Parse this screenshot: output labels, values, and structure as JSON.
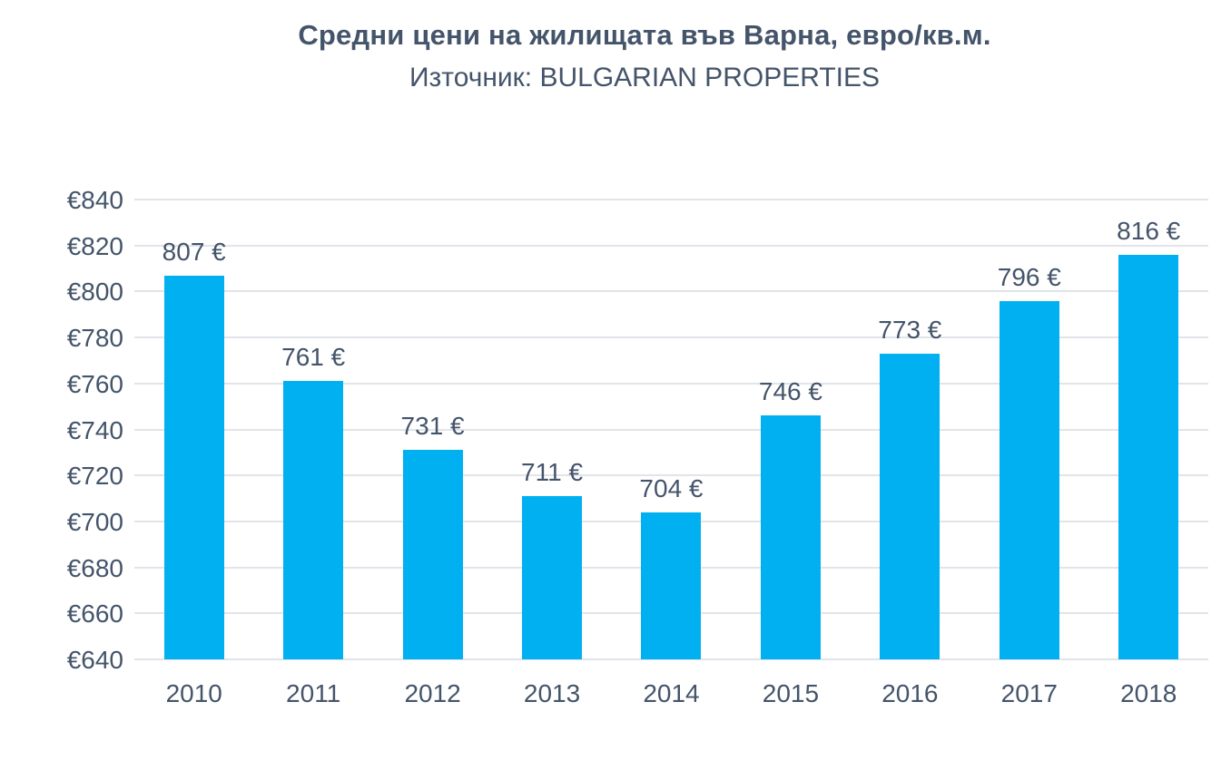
{
  "header": {
    "title": "Средни цени на жилищата във Варна, евро/кв.м.",
    "subtitle": "Източник: BULGARIAN PROPERTIES"
  },
  "chart_data": {
    "type": "bar",
    "title": "Средни цени на жилищата във Варна, евро/кв.м.",
    "subtitle": "Източник: BULGARIAN PROPERTIES",
    "categories": [
      "2010",
      "2011",
      "2012",
      "2013",
      "2014",
      "2015",
      "2016",
      "2017",
      "2018"
    ],
    "values": [
      807,
      761,
      731,
      711,
      704,
      746,
      773,
      796,
      816
    ],
    "value_labels": [
      "807 €",
      "761 €",
      "731 €",
      "711 €",
      "704 €",
      "746 €",
      "773 €",
      "796 €",
      "816 €"
    ],
    "xlabel": "",
    "ylabel": "",
    "ylim": [
      640,
      840
    ],
    "yticks": [
      640,
      660,
      680,
      700,
      720,
      740,
      760,
      780,
      800,
      820,
      840
    ],
    "ytick_labels": [
      "€640",
      "€660",
      "€680",
      "€700",
      "€720",
      "€740",
      "€760",
      "€780",
      "€800",
      "€820",
      "€840"
    ],
    "grid": true,
    "legend_position": "none",
    "colors": {
      "bar": "#00B0F0",
      "text": "#44546A",
      "gridline": "#E1E4E9",
      "background": "#FFFFFF"
    }
  }
}
